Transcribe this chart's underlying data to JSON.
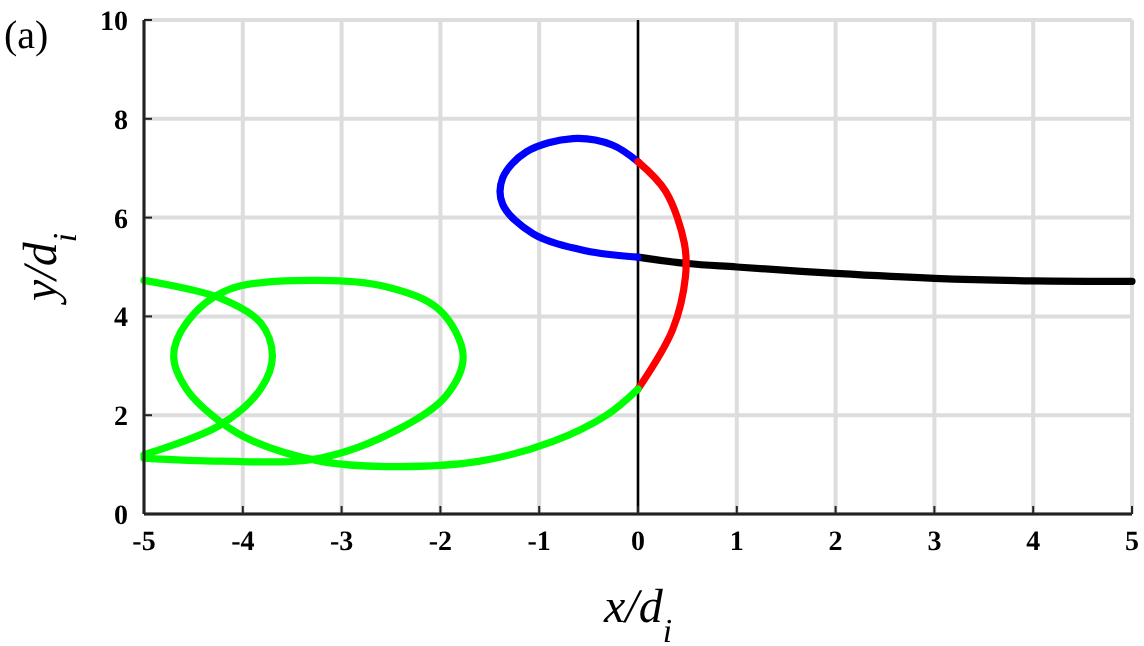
{
  "chart_data": {
    "type": "line",
    "xlabel": "x/d$_{i}$",
    "ylabel": "y/d$_{i}$",
    "annotations": [
      "(a)"
    ],
    "xlim": [
      -5,
      5
    ],
    "ylim": [
      0,
      10
    ],
    "xticks": [
      -5,
      -4,
      -3,
      -2,
      -1,
      0,
      1,
      2,
      3,
      4,
      5
    ],
    "yticks": [
      0,
      2,
      4,
      6,
      8,
      10
    ],
    "grid": true,
    "line_style": "solid",
    "marker": "none",
    "ref_lines": [
      {
        "axis": "x",
        "value": 0,
        "color": "#000000"
      }
    ],
    "series": [
      {
        "color": "#000000",
        "x": [
          0,
          0.5,
          1,
          2,
          3,
          4,
          5
        ],
        "values": [
          5.2,
          5.07,
          5.0,
          4.87,
          4.77,
          4.72,
          4.71
        ]
      },
      {
        "color": "#0000ff",
        "x": [
          0,
          -0.53,
          -1.06,
          -1.37,
          -1.37,
          -1.13,
          -0.66,
          -0.26,
          0
        ],
        "values": [
          5.2,
          5.33,
          5.67,
          6.27,
          6.8,
          7.33,
          7.6,
          7.47,
          7.13
        ]
      },
      {
        "color": "#ff0000",
        "x": [
          0,
          0.28,
          0.47,
          0.48,
          0.35,
          0
        ],
        "values": [
          7.13,
          6.53,
          5.47,
          4.8,
          3.73,
          2.53
        ]
      },
      {
        "color": "#00ff00",
        "x": [
          0,
          -0.32,
          -0.86,
          -1.6,
          -2.55,
          -3.22,
          -3.89,
          -4.23,
          -4.57,
          -4.7,
          -4.57,
          -4.16,
          -3.29,
          -2.55,
          -2.01,
          -1.77,
          -1.94,
          -2.41,
          -3.22,
          -4.23,
          -5,
          null,
          -5,
          -4.23,
          -3.82,
          -3.7,
          -3.82,
          -4.23,
          -5
        ],
        "values": [
          2.53,
          2.0,
          1.47,
          1.07,
          0.96,
          1.07,
          1.47,
          1.87,
          2.53,
          3.2,
          3.87,
          4.53,
          4.73,
          4.6,
          4.13,
          3.2,
          2.4,
          1.73,
          1.13,
          1.07,
          1.13,
          null,
          4.73,
          4.37,
          3.87,
          3.2,
          2.53,
          1.8,
          1.2
        ]
      }
    ]
  }
}
